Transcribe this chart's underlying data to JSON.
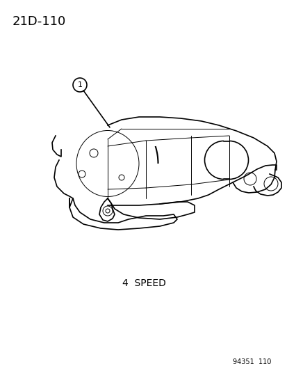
{
  "title_text": "21D-110",
  "label_1": "1",
  "caption": "4  SPEED",
  "part_number": "94351  110",
  "bg_color": "#ffffff",
  "line_color": "#000000",
  "title_fontsize": 13,
  "caption_fontsize": 10,
  "part_fontsize": 7,
  "fig_width": 4.14,
  "fig_height": 5.33,
  "dpi": 100
}
